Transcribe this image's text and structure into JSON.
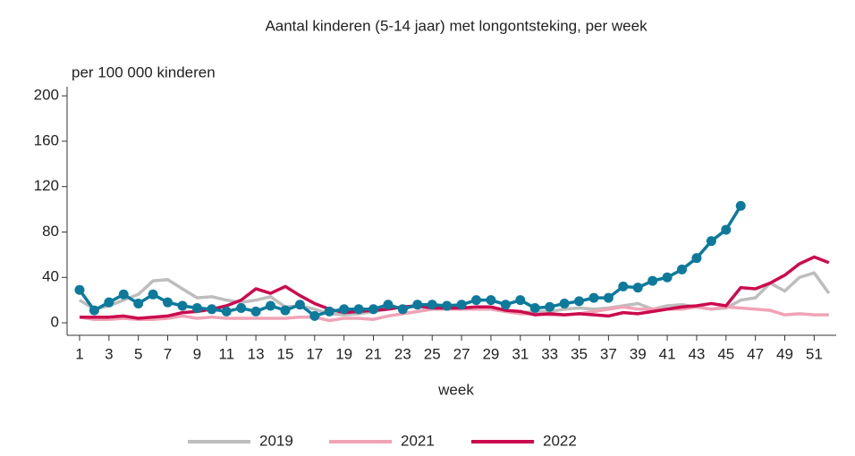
{
  "chart_data": {
    "type": "line",
    "title": "Aantal kinderen (5-14 jaar) met longontsteking, per week",
    "ylabel": "per 100 000 kinderen",
    "xlabel": "week",
    "x": [
      1,
      2,
      3,
      4,
      5,
      6,
      7,
      8,
      9,
      10,
      11,
      12,
      13,
      14,
      15,
      16,
      17,
      18,
      19,
      20,
      21,
      22,
      23,
      24,
      25,
      26,
      27,
      28,
      29,
      30,
      31,
      32,
      33,
      34,
      35,
      36,
      37,
      38,
      39,
      40,
      41,
      42,
      43,
      44,
      45,
      46,
      47,
      48,
      49,
      50,
      51,
      52
    ],
    "series": [
      {
        "name": "2019",
        "color": "#bdbdbd",
        "marker": false,
        "values": [
          20,
          12,
          15,
          20,
          25,
          37,
          38,
          30,
          22,
          23,
          20,
          18,
          20,
          23,
          14,
          15,
          12,
          8,
          7,
          8,
          10,
          12,
          14,
          14,
          13,
          13,
          13,
          13,
          12,
          10,
          9,
          10,
          10,
          12,
          13,
          12,
          13,
          15,
          17,
          12,
          15,
          16,
          14,
          12,
          13,
          20,
          22,
          35,
          28,
          40,
          44,
          26
        ]
      },
      {
        "name": "2021",
        "color": "#f0a3b5",
        "marker": false,
        "values": [
          5,
          3,
          3,
          4,
          3,
          3,
          4,
          6,
          4,
          5,
          4,
          4,
          4,
          4,
          4,
          5,
          5,
          2,
          4,
          4,
          3,
          6,
          8,
          10,
          12,
          12,
          12,
          12,
          12,
          10,
          8,
          8,
          7,
          7,
          8,
          10,
          12,
          14,
          12,
          12,
          12,
          12,
          14,
          12,
          14,
          13,
          12,
          11,
          7,
          8,
          7,
          7
        ]
      },
      {
        "name": "2022",
        "color": "#cc0a4e",
        "marker": false,
        "values": [
          5,
          5,
          5,
          6,
          4,
          5,
          6,
          9,
          10,
          12,
          15,
          20,
          30,
          26,
          32,
          24,
          17,
          12,
          9,
          10,
          11,
          12,
          14,
          15,
          13,
          13,
          13,
          14,
          14,
          11,
          10,
          7,
          8,
          7,
          8,
          7,
          6,
          9,
          8,
          10,
          12,
          14,
          15,
          17,
          15,
          31,
          30,
          35,
          42,
          52,
          58,
          53
        ]
      },
      {
        "color": "#0d7a9c",
        "marker": true,
        "values": [
          29,
          11,
          18,
          25,
          17,
          25,
          18,
          15,
          13,
          12,
          10,
          13,
          10,
          15,
          11,
          16,
          6,
          10,
          12,
          12,
          12,
          16,
          12,
          16,
          16,
          15,
          16,
          20,
          20,
          16,
          20,
          13,
          14,
          17,
          19,
          22,
          22,
          32,
          31,
          37,
          40,
          47,
          57,
          72,
          82,
          103,
          null,
          null,
          null,
          null,
          null,
          null
        ]
      }
    ],
    "xlim": [
      0.15,
      52.5
    ],
    "ylim": [
      -11,
      208
    ],
    "xticks": [
      1,
      3,
      5,
      7,
      9,
      11,
      13,
      15,
      17,
      19,
      21,
      23,
      25,
      27,
      29,
      31,
      33,
      35,
      37,
      39,
      41,
      43,
      45,
      47,
      49,
      51
    ],
    "yticks": [
      0,
      40,
      80,
      120,
      160,
      200
    ],
    "grid": false
  }
}
